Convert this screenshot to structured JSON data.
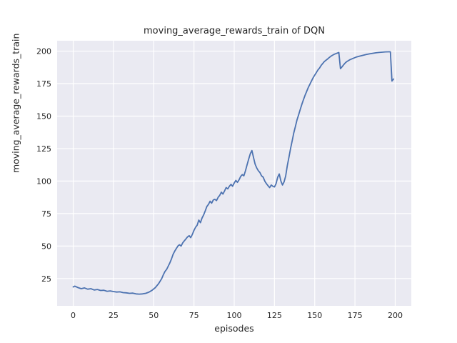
{
  "chart_data": {
    "type": "line",
    "title": "moving_average_rewards_train of DQN",
    "xlabel": "episodes",
    "ylabel": "moving_average_rewards_train",
    "xlim": [
      -10,
      210
    ],
    "ylim": [
      4,
      208
    ],
    "xticks": [
      0,
      25,
      50,
      75,
      100,
      125,
      150,
      175,
      200
    ],
    "yticks": [
      25,
      50,
      75,
      100,
      125,
      150,
      175,
      200
    ],
    "grid": true,
    "legend": "none",
    "colors": {
      "figure_bg": "#ffffff",
      "plot_bg": "#eaeaf2",
      "grid": "#ffffff",
      "line": "#4c72b0",
      "text": "#262626"
    },
    "series": [
      {
        "name": "moving_average_rewards_train",
        "points": [
          [
            0,
            18.5
          ],
          [
            1,
            19.2
          ],
          [
            3,
            18
          ],
          [
            5,
            17.2
          ],
          [
            7,
            17.8
          ],
          [
            9,
            16.8
          ],
          [
            11,
            17.2
          ],
          [
            13,
            16.2
          ],
          [
            15,
            16.6
          ],
          [
            17,
            15.8
          ],
          [
            19,
            16
          ],
          [
            21,
            15.2
          ],
          [
            23,
            15.5
          ],
          [
            25,
            15
          ],
          [
            27,
            14.6
          ],
          [
            29,
            14.8
          ],
          [
            31,
            14.2
          ],
          [
            33,
            14
          ],
          [
            35,
            13.6
          ],
          [
            37,
            13.8
          ],
          [
            39,
            13.2
          ],
          [
            41,
            13
          ],
          [
            43,
            13.2
          ],
          [
            45,
            13.6
          ],
          [
            47,
            14.5
          ],
          [
            49,
            16
          ],
          [
            51,
            18
          ],
          [
            53,
            21
          ],
          [
            55,
            25
          ],
          [
            56,
            28
          ],
          [
            57,
            30.5
          ],
          [
            58,
            32
          ],
          [
            59,
            34.5
          ],
          [
            60,
            37
          ],
          [
            61,
            40
          ],
          [
            62,
            43.5
          ],
          [
            63,
            46
          ],
          [
            64,
            48
          ],
          [
            65,
            50
          ],
          [
            66,
            51
          ],
          [
            67,
            50
          ],
          [
            68,
            52.5
          ],
          [
            69,
            54
          ],
          [
            70,
            55.5
          ],
          [
            71,
            57
          ],
          [
            72,
            58
          ],
          [
            73,
            56.5
          ],
          [
            74,
            59
          ],
          [
            75,
            62
          ],
          [
            76,
            64.5
          ],
          [
            77,
            66
          ],
          [
            78,
            70
          ],
          [
            79,
            68
          ],
          [
            80,
            71.5
          ],
          [
            81,
            74
          ],
          [
            82,
            77
          ],
          [
            83,
            80.5
          ],
          [
            84,
            82
          ],
          [
            85,
            84.5
          ],
          [
            86,
            83
          ],
          [
            87,
            85.5
          ],
          [
            88,
            86
          ],
          [
            89,
            85
          ],
          [
            90,
            87.5
          ],
          [
            91,
            89
          ],
          [
            92,
            91.5
          ],
          [
            93,
            90
          ],
          [
            94,
            92.5
          ],
          [
            95,
            95
          ],
          [
            96,
            94
          ],
          [
            97,
            96
          ],
          [
            98,
            97.5
          ],
          [
            99,
            96
          ],
          [
            100,
            98.5
          ],
          [
            101,
            100.5
          ],
          [
            102,
            99
          ],
          [
            103,
            101
          ],
          [
            104,
            103.5
          ],
          [
            105,
            105
          ],
          [
            106,
            104
          ],
          [
            107,
            108
          ],
          [
            108,
            112.5
          ],
          [
            109,
            117
          ],
          [
            110,
            121
          ],
          [
            111,
            123.5
          ],
          [
            112,
            118
          ],
          [
            113,
            113
          ],
          [
            114,
            110
          ],
          [
            115,
            108
          ],
          [
            116,
            106.5
          ],
          [
            117,
            104
          ],
          [
            118,
            103
          ],
          [
            119,
            100
          ],
          [
            120,
            98
          ],
          [
            121,
            96.5
          ],
          [
            122,
            95
          ],
          [
            123,
            97
          ],
          [
            124,
            96
          ],
          [
            125,
            95.5
          ],
          [
            126,
            98
          ],
          [
            127,
            103
          ],
          [
            128,
            105.5
          ],
          [
            129,
            100
          ],
          [
            130,
            97
          ],
          [
            131,
            99.5
          ],
          [
            132,
            104
          ],
          [
            133,
            112
          ],
          [
            134,
            118.5
          ],
          [
            135,
            125
          ],
          [
            136,
            131
          ],
          [
            137,
            137
          ],
          [
            138,
            142
          ],
          [
            139,
            147
          ],
          [
            140,
            151
          ],
          [
            141,
            155
          ],
          [
            142,
            159
          ],
          [
            143,
            162.5
          ],
          [
            144,
            166
          ],
          [
            145,
            169
          ],
          [
            146,
            172
          ],
          [
            147,
            174.5
          ],
          [
            148,
            177
          ],
          [
            149,
            179.5
          ],
          [
            150,
            181.5
          ],
          [
            151,
            183.5
          ],
          [
            152,
            185.5
          ],
          [
            153,
            187
          ],
          [
            154,
            189
          ],
          [
            155,
            190.5
          ],
          [
            156,
            192
          ],
          [
            157,
            193
          ],
          [
            158,
            194
          ],
          [
            159,
            195
          ],
          [
            160,
            196
          ],
          [
            161,
            196.8
          ],
          [
            162,
            197.5
          ],
          [
            163,
            198
          ],
          [
            164,
            198.5
          ],
          [
            165,
            199
          ],
          [
            166,
            186.5
          ],
          [
            167,
            188
          ],
          [
            168,
            189.5
          ],
          [
            169,
            191
          ],
          [
            170,
            192
          ],
          [
            172,
            193.5
          ],
          [
            174,
            194.5
          ],
          [
            176,
            195.5
          ],
          [
            178,
            196.2
          ],
          [
            180,
            196.8
          ],
          [
            182,
            197.4
          ],
          [
            184,
            197.9
          ],
          [
            186,
            198.3
          ],
          [
            188,
            198.7
          ],
          [
            190,
            199
          ],
          [
            192,
            199.2
          ],
          [
            194,
            199.4
          ],
          [
            196,
            199.5
          ],
          [
            197,
            199.5
          ],
          [
            198,
            177
          ],
          [
            199,
            178.5
          ]
        ]
      }
    ]
  }
}
